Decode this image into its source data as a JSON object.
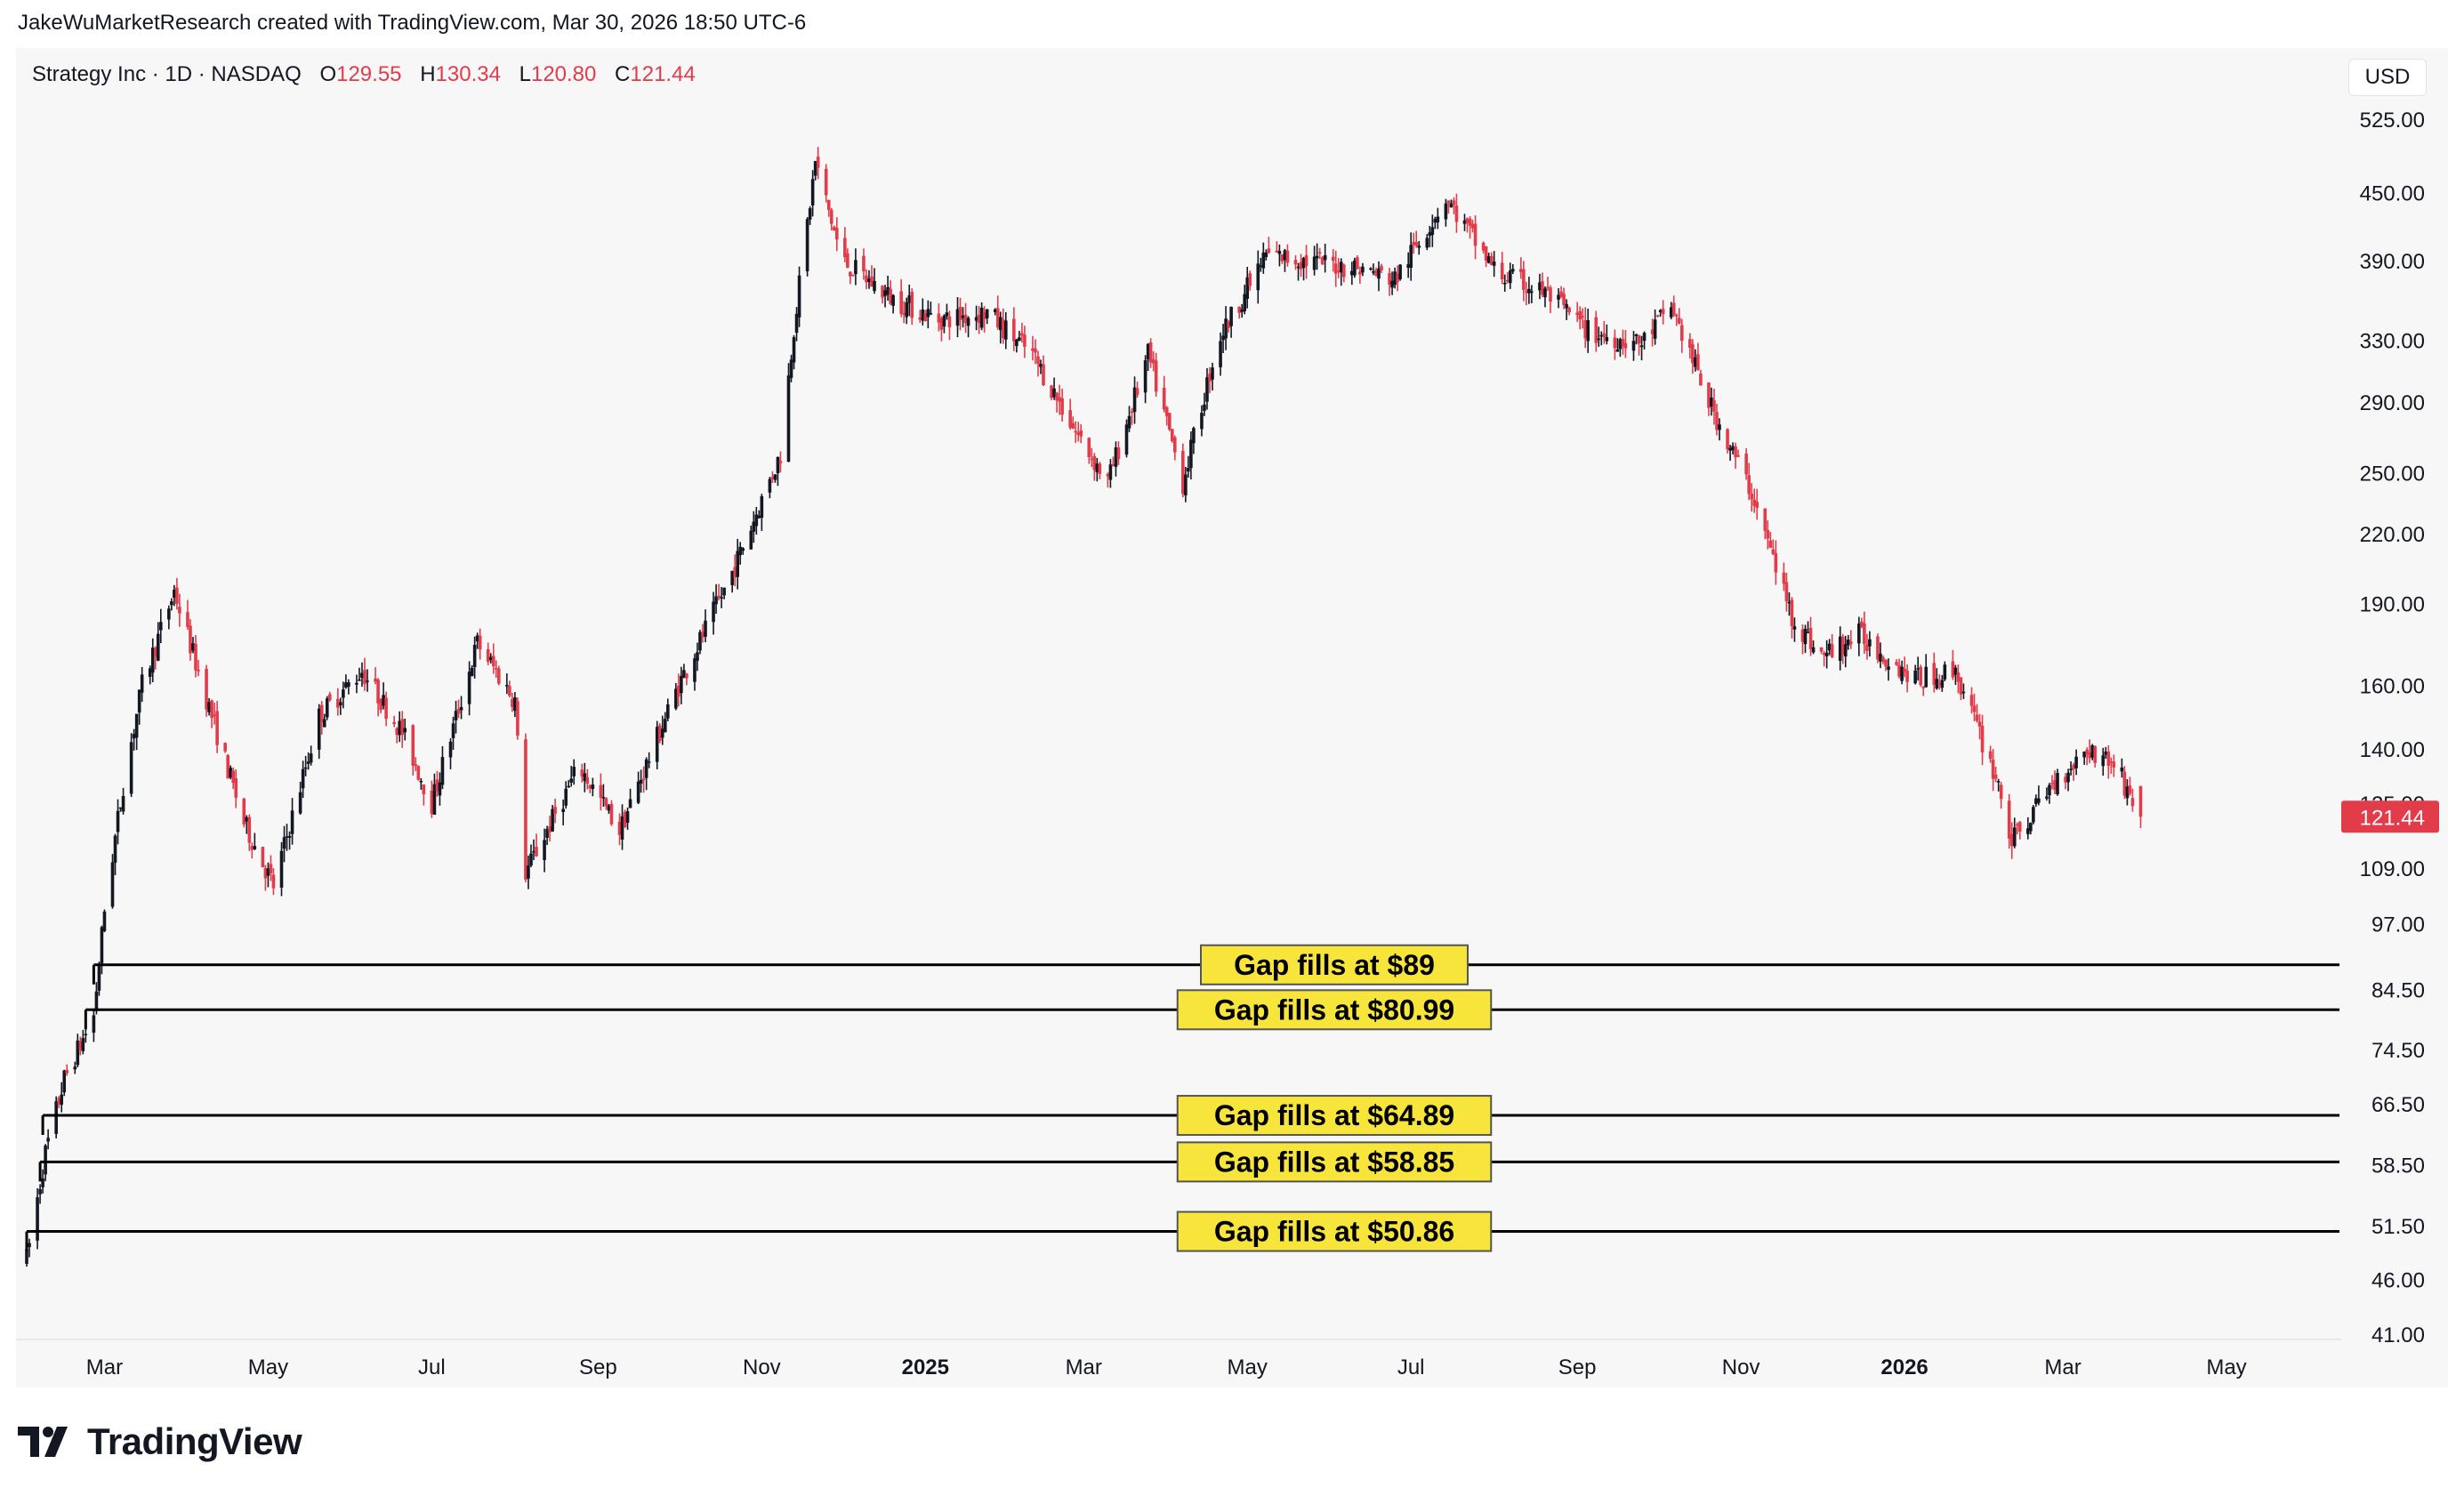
{
  "header": {
    "note": "JakeWuMarketResearch created with TradingView.com, Mar 30, 2026 18:50 UTC-6"
  },
  "legend": {
    "symbol": "Strategy Inc · 1D · NASDAQ",
    "o_label": "O",
    "o_value": "129.55",
    "h_label": "H",
    "h_value": "130.34",
    "l_label": "L",
    "l_value": "120.80",
    "c_label": "C",
    "c_value": "121.44"
  },
  "currency_button": "USD",
  "brand": {
    "name": "TradingView",
    "icon": "tradingview-logo-icon"
  },
  "colors": {
    "up": "#131722",
    "down": "#e23b4a",
    "label_bg": "#f7e53b",
    "price_badge": "#e23b4a"
  },
  "chart_data": {
    "type": "candlestick",
    "scale": "log",
    "x_ticks": [
      {
        "label": "Mar",
        "date": "2024-03-01",
        "bold": false
      },
      {
        "label": "May",
        "date": "2024-05-01",
        "bold": false
      },
      {
        "label": "Jul",
        "date": "2024-07-01",
        "bold": false
      },
      {
        "label": "Sep",
        "date": "2024-09-01",
        "bold": false
      },
      {
        "label": "Nov",
        "date": "2024-11-01",
        "bold": false
      },
      {
        "label": "2025",
        "date": "2025-01-01",
        "bold": true
      },
      {
        "label": "Mar",
        "date": "2025-03-01",
        "bold": false
      },
      {
        "label": "May",
        "date": "2025-05-01",
        "bold": false
      },
      {
        "label": "Jul",
        "date": "2025-07-01",
        "bold": false
      },
      {
        "label": "Sep",
        "date": "2025-09-01",
        "bold": false
      },
      {
        "label": "Nov",
        "date": "2025-11-01",
        "bold": false
      },
      {
        "label": "2026",
        "date": "2026-01-01",
        "bold": true
      },
      {
        "label": "Mar",
        "date": "2026-03-01",
        "bold": false
      },
      {
        "label": "May",
        "date": "2026-05-01",
        "bold": false
      }
    ],
    "y_ticks": [
      "525.00",
      "450.00",
      "390.00",
      "330.00",
      "290.00",
      "250.00",
      "220.00",
      "190.00",
      "160.00",
      "140.00",
      "125.00",
      "109.00",
      "97.00",
      "84.50",
      "74.50",
      "66.50",
      "58.50",
      "51.50",
      "46.00",
      "41.00"
    ],
    "y_range": [
      41,
      560
    ],
    "last_price": "121.44",
    "price_path": [
      [
        "2024-02-01",
        48
      ],
      [
        "2024-02-08",
        60
      ],
      [
        "2024-02-15",
        70
      ],
      [
        "2024-02-26",
        80
      ],
      [
        "2024-03-01",
        100
      ],
      [
        "2024-03-08",
        130
      ],
      [
        "2024-03-15",
        160
      ],
      [
        "2024-03-27",
        195
      ],
      [
        "2024-04-10",
        150
      ],
      [
        "2024-04-22",
        120
      ],
      [
        "2024-05-03",
        105
      ],
      [
        "2024-05-20",
        150
      ],
      [
        "2024-06-05",
        165
      ],
      [
        "2024-06-20",
        145
      ],
      [
        "2024-07-01",
        125
      ],
      [
        "2024-07-18",
        175
      ],
      [
        "2024-08-01",
        155
      ],
      [
        "2024-08-05",
        108
      ],
      [
        "2024-08-25",
        135
      ],
      [
        "2024-09-09",
        118
      ],
      [
        "2024-10-01",
        160
      ],
      [
        "2024-10-20",
        200
      ],
      [
        "2024-11-08",
        260
      ],
      [
        "2024-11-13",
        340
      ],
      [
        "2024-11-21",
        480
      ],
      [
        "2024-12-01",
        390
      ],
      [
        "2024-12-20",
        360
      ],
      [
        "2025-01-06",
        345
      ],
      [
        "2025-01-24",
        350
      ],
      [
        "2025-02-10",
        320
      ],
      [
        "2025-02-27",
        270
      ],
      [
        "2025-03-10",
        245
      ],
      [
        "2025-03-25",
        320
      ],
      [
        "2025-04-07",
        245
      ],
      [
        "2025-04-20",
        330
      ],
      [
        "2025-05-08",
        395
      ],
      [
        "2025-05-23",
        390
      ],
      [
        "2025-06-10",
        385
      ],
      [
        "2025-06-25",
        375
      ],
      [
        "2025-07-14",
        445
      ],
      [
        "2025-08-02",
        380
      ],
      [
        "2025-08-20",
        365
      ],
      [
        "2025-09-06",
        335
      ],
      [
        "2025-09-25",
        328
      ],
      [
        "2025-10-06",
        355
      ],
      [
        "2025-10-20",
        290
      ],
      [
        "2025-11-05",
        240
      ],
      [
        "2025-11-20",
        185
      ],
      [
        "2025-12-01",
        170
      ],
      [
        "2025-12-15",
        178
      ],
      [
        "2026-01-05",
        162
      ],
      [
        "2026-01-20",
        165
      ],
      [
        "2026-02-05",
        130
      ],
      [
        "2026-02-10",
        115
      ],
      [
        "2026-02-25",
        130
      ],
      [
        "2026-03-10",
        140
      ],
      [
        "2026-03-20",
        136
      ],
      [
        "2026-03-30",
        121.44
      ]
    ],
    "gap_levels": [
      {
        "label": "Gap fills at $89",
        "price": 89,
        "start": "2024-02-26"
      },
      {
        "label": "Gap fills at $80.99",
        "price": 80.99,
        "start": "2024-02-23"
      },
      {
        "label": "Gap fills at $64.89",
        "price": 64.89,
        "start": "2024-02-07"
      },
      {
        "label": "Gap fills at $58.85",
        "price": 58.85,
        "start": "2024-02-06"
      },
      {
        "label": "Gap fills at $50.86",
        "price": 50.86,
        "start": "2024-02-01"
      }
    ]
  }
}
